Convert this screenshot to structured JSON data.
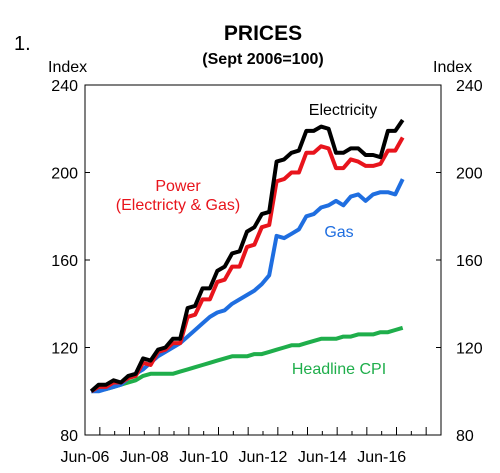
{
  "chart_data": {
    "type": "line",
    "figure_number": "1.",
    "title": "PRICES",
    "subtitle": "(Sept  2006=100)",
    "ylabel_left": "Index",
    "ylabel_right": "Index",
    "ylim": [
      80,
      240
    ],
    "yticks": [
      80,
      120,
      160,
      200,
      240
    ],
    "x_tick_labels": [
      "Jun-06",
      "Jun-08",
      "Jun-10",
      "Jun-12",
      "Jun-14",
      "Jun-16"
    ],
    "x_tick_values": [
      2006.5,
      2008.5,
      2010.5,
      2012.5,
      2014.5,
      2016.5
    ],
    "xlim": [
      2006.5,
      2018.5
    ],
    "grid": false,
    "series": [
      {
        "name": "Electricity",
        "color": "#000000",
        "x": [
          2006.71,
          2006.96,
          2007.21,
          2007.46,
          2007.71,
          2007.96,
          2008.21,
          2008.46,
          2008.71,
          2008.96,
          2009.21,
          2009.46,
          2009.71,
          2009.96,
          2010.21,
          2010.46,
          2010.71,
          2010.96,
          2011.21,
          2011.46,
          2011.71,
          2011.96,
          2012.21,
          2012.46,
          2012.71,
          2012.96,
          2013.21,
          2013.46,
          2013.71,
          2013.96,
          2014.21,
          2014.46,
          2014.71,
          2014.96,
          2015.21,
          2015.46,
          2015.71,
          2015.96,
          2016.21,
          2016.46,
          2016.71,
          2016.96,
          2017.21
        ],
        "values": [
          100,
          103,
          103,
          105,
          104,
          107,
          108,
          115,
          114,
          119,
          120,
          124,
          124,
          138,
          139,
          147,
          147,
          155,
          157,
          163,
          164,
          173,
          175,
          181,
          182,
          205,
          206,
          209,
          210,
          219,
          219,
          221,
          220,
          209,
          209,
          211,
          211,
          208,
          208,
          207,
          219,
          219,
          224
        ]
      },
      {
        "name": "Power\n(Electricty & Gas)",
        "color": "#e8141c",
        "x": [
          2006.71,
          2006.96,
          2007.21,
          2007.46,
          2007.71,
          2007.96,
          2008.21,
          2008.46,
          2008.71,
          2008.96,
          2009.21,
          2009.46,
          2009.71,
          2009.96,
          2010.21,
          2010.46,
          2010.71,
          2010.96,
          2011.21,
          2011.46,
          2011.71,
          2011.96,
          2012.21,
          2012.46,
          2012.71,
          2012.96,
          2013.21,
          2013.46,
          2013.71,
          2013.96,
          2014.21,
          2014.46,
          2014.71,
          2014.96,
          2015.21,
          2015.46,
          2015.71,
          2015.96,
          2016.21,
          2016.46,
          2016.71,
          2016.96,
          2017.21
        ],
        "values": [
          100,
          102,
          102,
          104,
          104,
          106,
          107,
          113,
          112,
          118,
          119,
          122,
          122,
          134,
          135,
          142,
          142,
          150,
          151,
          157,
          157,
          166,
          167,
          175,
          176,
          196,
          197,
          200,
          200,
          209,
          209,
          212,
          211,
          202,
          202,
          206,
          205,
          203,
          203,
          204,
          210,
          210,
          216
        ]
      },
      {
        "name": "Gas",
        "color": "#1f6ee0",
        "x": [
          2006.71,
          2006.96,
          2007.21,
          2007.46,
          2007.71,
          2007.96,
          2008.21,
          2008.46,
          2008.71,
          2008.96,
          2009.21,
          2009.46,
          2009.71,
          2009.96,
          2010.21,
          2010.46,
          2010.71,
          2010.96,
          2011.21,
          2011.46,
          2011.71,
          2011.96,
          2012.21,
          2012.46,
          2012.71,
          2012.96,
          2013.21,
          2013.46,
          2013.71,
          2013.96,
          2014.21,
          2014.46,
          2014.71,
          2014.96,
          2015.21,
          2015.46,
          2015.71,
          2015.96,
          2016.21,
          2016.46,
          2016.71,
          2016.96,
          2017.21
        ],
        "values": [
          100,
          100,
          101,
          102,
          103,
          106,
          108,
          110,
          113,
          116,
          118,
          120,
          122,
          125,
          128,
          131,
          134,
          136,
          137,
          140,
          142,
          144,
          146,
          149,
          153,
          171,
          170,
          172,
          174,
          180,
          181,
          184,
          185,
          187,
          185,
          189,
          190,
          187,
          190,
          191,
          191,
          190,
          197
        ]
      },
      {
        "name": "Headline CPI",
        "color": "#1fae4b",
        "x": [
          2006.71,
          2006.96,
          2007.21,
          2007.46,
          2007.71,
          2007.96,
          2008.21,
          2008.46,
          2008.71,
          2008.96,
          2009.21,
          2009.46,
          2009.71,
          2009.96,
          2010.21,
          2010.46,
          2010.71,
          2010.96,
          2011.21,
          2011.46,
          2011.71,
          2011.96,
          2012.21,
          2012.46,
          2012.71,
          2012.96,
          2013.21,
          2013.46,
          2013.71,
          2013.96,
          2014.21,
          2014.46,
          2014.71,
          2014.96,
          2015.21,
          2015.46,
          2015.71,
          2015.96,
          2016.21,
          2016.46,
          2016.71,
          2016.96,
          2017.21
        ],
        "values": [
          100,
          101,
          101,
          102,
          103,
          104,
          105,
          107,
          108,
          108,
          108,
          108,
          109,
          110,
          111,
          112,
          113,
          114,
          115,
          116,
          116,
          116,
          117,
          117,
          118,
          119,
          120,
          121,
          121,
          122,
          123,
          124,
          124,
          124,
          125,
          125,
          126,
          126,
          126,
          127,
          127,
          128,
          129
        ]
      }
    ]
  }
}
